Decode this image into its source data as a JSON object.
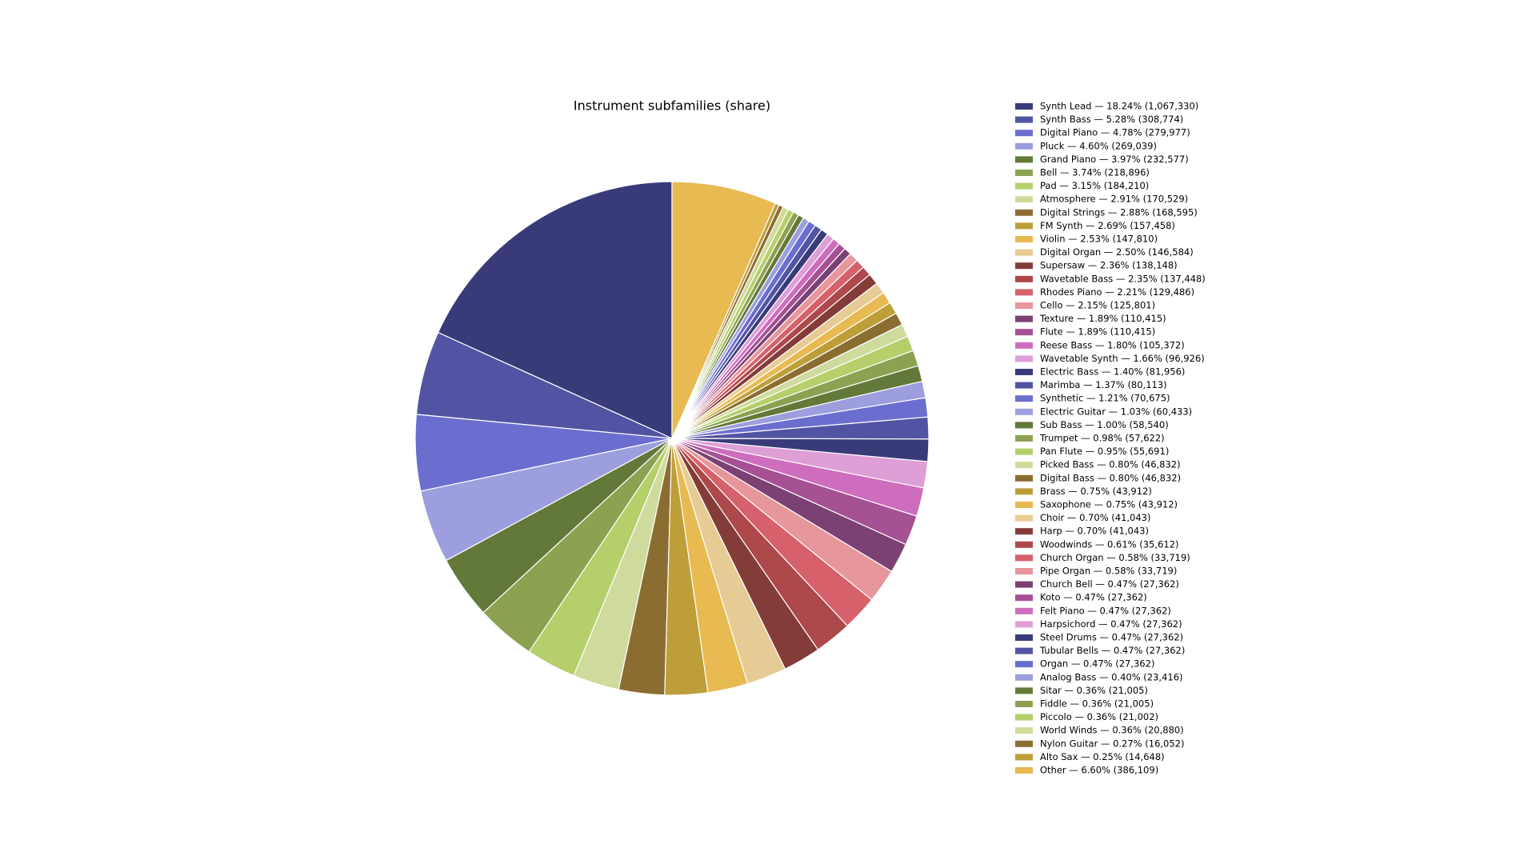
{
  "chart_data": {
    "type": "pie",
    "title": "Instrument subfamilies (share)",
    "labels": [
      "Synth Lead — 18.24% (1,067,330)",
      "Synth Bass — 5.28% (308,774)",
      "Digital Piano — 4.78% (279,977)",
      "Pluck — 4.60% (269,039)",
      "Grand Piano — 3.97% (232,577)",
      "Bell — 3.74% (218,896)",
      "Pad — 3.15% (184,210)",
      "Atmosphere — 2.91% (170,529)",
      "Digital Strings — 2.88% (168,595)",
      "FM Synth — 2.69% (157,458)",
      "Violin — 2.53% (147,810)",
      "Digital Organ — 2.50% (146,584)",
      "Supersaw — 2.36% (138,148)",
      "Wavetable Bass — 2.35% (137,448)",
      "Rhodes Piano — 2.21% (129,486)",
      "Cello — 2.15% (125,801)",
      "Texture — 1.89% (110,415)",
      "Flute — 1.89% (110,415)",
      "Reese Bass — 1.80% (105,372)",
      "Wavetable Synth — 1.66% (96,926)",
      "Electric Bass — 1.40% (81,956)",
      "Marimba — 1.37% (80,113)",
      "Synthetic — 1.21% (70,675)",
      "Electric Guitar — 1.03% (60,433)",
      "Sub Bass — 1.00% (58,540)",
      "Trumpet — 0.98% (57,622)",
      "Pan Flute — 0.95% (55,691)",
      "Picked Bass — 0.80% (46,832)",
      "Digital Bass — 0.80% (46,832)",
      "Brass — 0.75% (43,912)",
      "Saxophone — 0.75% (43,912)",
      "Choir — 0.70% (41,043)",
      "Harp — 0.70% (41,043)",
      "Woodwinds — 0.61% (35,612)",
      "Church Organ — 0.58% (33,719)",
      "Pipe Organ — 0.58% (33,719)",
      "Church Bell — 0.47% (27,362)",
      "Koto — 0.47% (27,362)",
      "Felt Piano — 0.47% (27,362)",
      "Harpsichord — 0.47% (27,362)",
      "Steel Drums — 0.47% (27,362)",
      "Tubular Bells — 0.47% (27,362)",
      "Organ — 0.47% (27,362)",
      "Analog Bass — 0.40% (23,416)",
      "Sitar — 0.36% (21,005)",
      "Fiddle — 0.36% (21,005)",
      "Piccolo — 0.36% (21,002)",
      "World Winds — 0.36% (20,880)",
      "Nylon Guitar — 0.27% (16,052)",
      "Alto Sax — 0.25% (14,648)",
      "Other — 6.60% (386,109)"
    ],
    "values": [
      1067330,
      308774,
      279977,
      269039,
      232577,
      218896,
      184210,
      170529,
      168595,
      157458,
      147810,
      146584,
      138148,
      137448,
      129486,
      125801,
      110415,
      110415,
      105372,
      96926,
      81956,
      80113,
      70675,
      60433,
      58540,
      57622,
      55691,
      46832,
      46832,
      43912,
      43912,
      41043,
      41043,
      35612,
      33719,
      33719,
      27362,
      27362,
      27362,
      27362,
      27362,
      27362,
      27362,
      23416,
      21005,
      21005,
      21002,
      20880,
      16052,
      14648,
      386109
    ],
    "colors": [
      "#393b79",
      "#5254a3",
      "#6b6ecf",
      "#9c9ede",
      "#637939",
      "#8ca252",
      "#b5cf6b",
      "#cedb9c",
      "#8c6d31",
      "#bd9e39",
      "#e7ba52",
      "#e7cb94",
      "#843c39",
      "#ad494a",
      "#d6616b",
      "#e7969c",
      "#7b4173",
      "#a55194",
      "#ce6dbd",
      "#de9ed6",
      "#393b79",
      "#5254a3",
      "#6b6ecf",
      "#9c9ede",
      "#637939",
      "#8ca252",
      "#b5cf6b",
      "#cedb9c",
      "#8c6d31",
      "#bd9e39",
      "#e7ba52",
      "#e7cb94",
      "#843c39",
      "#ad494a",
      "#d6616b",
      "#e7969c",
      "#7b4173",
      "#a55194",
      "#ce6dbd",
      "#de9ed6",
      "#393b79",
      "#5254a3",
      "#6b6ecf",
      "#9c9ede",
      "#637939",
      "#8ca252",
      "#b5cf6b",
      "#cedb9c",
      "#8c6d31",
      "#bd9e39",
      "#e7ba52"
    ],
    "start_angle": 90,
    "counterclockwise": true,
    "legend": "right"
  }
}
